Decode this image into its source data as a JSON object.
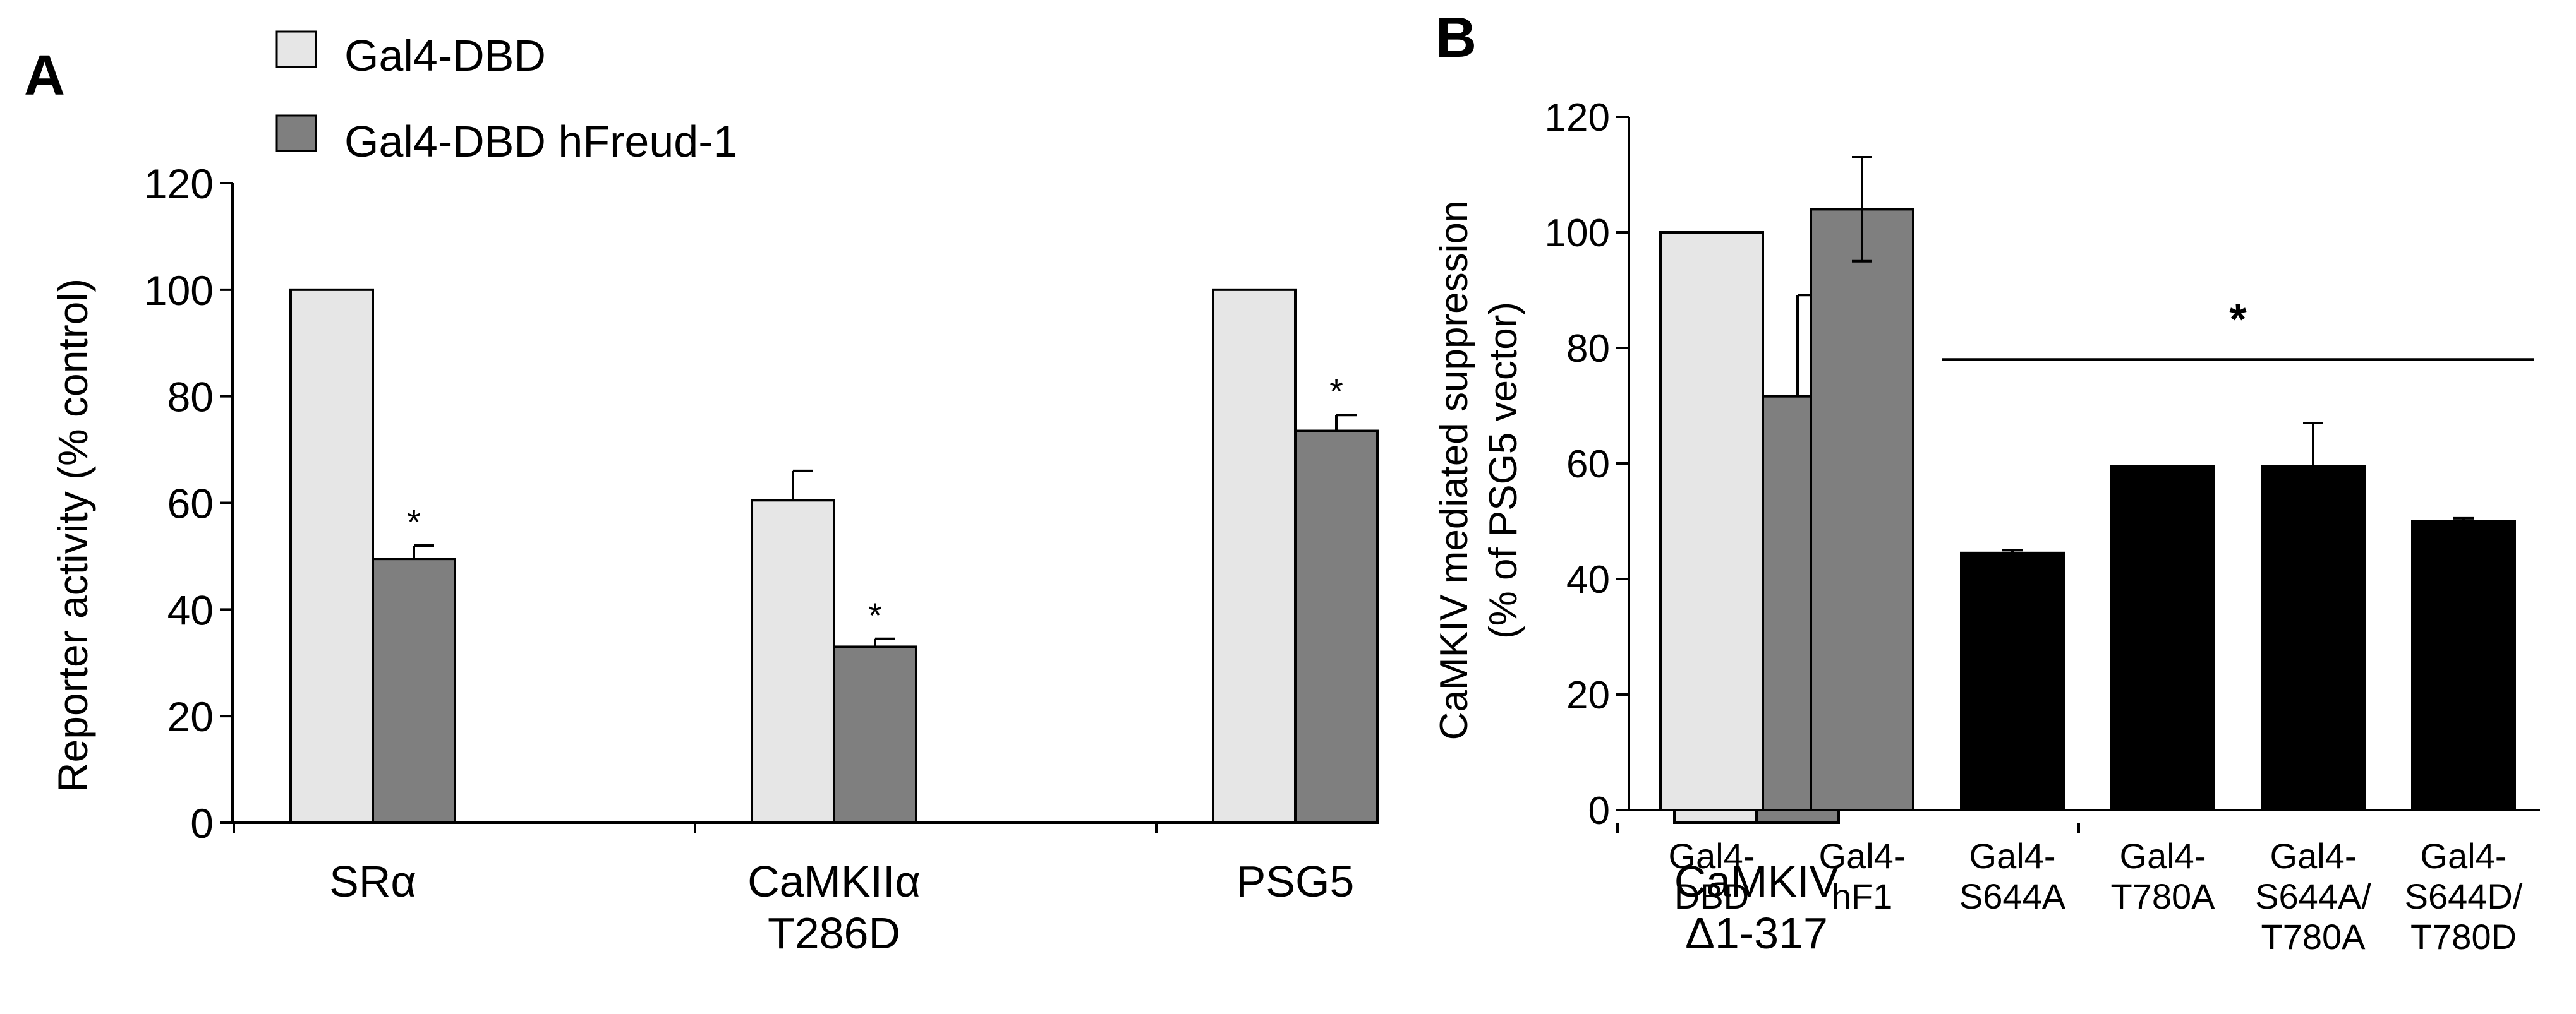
{
  "chart_data": [
    {
      "panel_label": "A",
      "type": "bar",
      "ylabel": "Reporter activity (% control)",
      "ylim": [
        0,
        120
      ],
      "yticks": [
        0,
        20,
        40,
        60,
        80,
        100,
        120
      ],
      "categories": [
        [
          "SRα"
        ],
        [
          "CaMKIIα",
          "T286D"
        ],
        [
          "PSG5"
        ],
        [
          "CaMKIV",
          "Δ1-317"
        ]
      ],
      "legend": {
        "placement": "top",
        "entries": [
          "Gal4-DBD",
          "Gal4-DBD hFreud-1"
        ]
      },
      "series": [
        {
          "name": "Gal4-DBD",
          "color": "#e6e6e6",
          "values": [
            100,
            60.5,
            100,
            61
          ],
          "errors": [
            0,
            5.5,
            0,
            22.5
          ]
        },
        {
          "name": "Gal4-DBD hFreud-1",
          "color": "#7f7f7f",
          "values": [
            49.5,
            33,
            73.5,
            80
          ],
          "errors": [
            2.5,
            1.5,
            3,
            19
          ]
        }
      ],
      "significance": [
        {
          "series": 1,
          "index": 0,
          "label": "*"
        },
        {
          "series": 1,
          "index": 1,
          "label": "*"
        },
        {
          "series": 1,
          "index": 2,
          "label": "*"
        }
      ]
    },
    {
      "panel_label": "B",
      "type": "bar",
      "ylabel": [
        "CaMKIV mediated suppression",
        "(% of PSG5 vector)"
      ],
      "ylim": [
        0,
        120
      ],
      "yticks": [
        0,
        20,
        40,
        60,
        80,
        100,
        120
      ],
      "categories": [
        [
          "Gal4-",
          "DBD"
        ],
        [
          "Gal4-",
          "hF1"
        ],
        [
          "Gal4-",
          "S644A"
        ],
        [
          "Gal4-",
          "T780A"
        ],
        [
          "Gal4-",
          "S644A/",
          "T780A"
        ],
        [
          "Gal4-",
          "S644D/",
          "T780D"
        ]
      ],
      "values": [
        100,
        104,
        44.5,
        59.5,
        59.5,
        50
      ],
      "errors": [
        0,
        9,
        0.5,
        0,
        7.5,
        0.5
      ],
      "colors": [
        "#e6e6e6",
        "#7f7f7f",
        "#000000",
        "#000000",
        "#000000",
        "#000000"
      ],
      "significance_bar": {
        "from_index": 2,
        "to_index": 5,
        "value": 78,
        "label": "*"
      }
    }
  ]
}
